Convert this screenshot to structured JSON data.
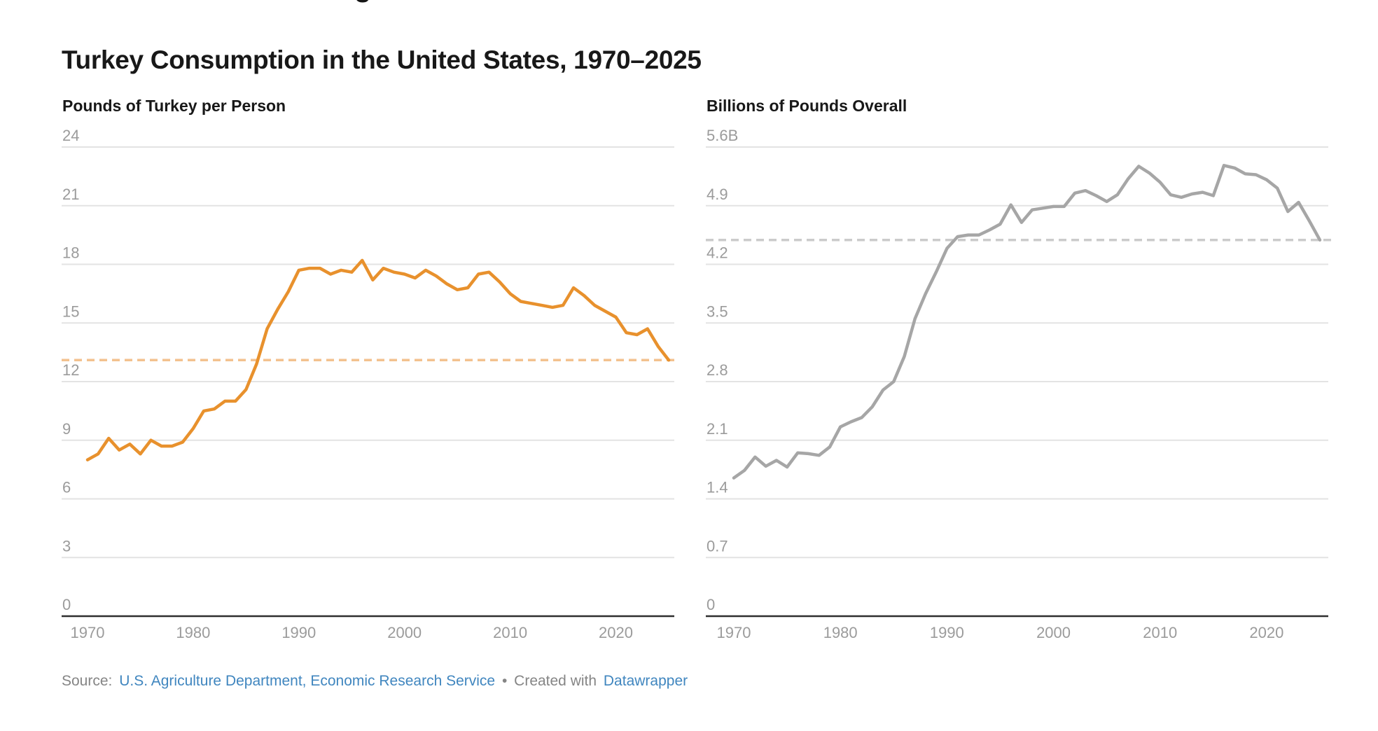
{
  "page": {
    "partial_glyph_top": "g"
  },
  "title": "Turkey Consumption in the United States, 1970–2025",
  "colors": {
    "title_text": "#181818",
    "tick_label": "#9B9B9B",
    "gridline": "#E3E3E3",
    "axis_line": "#2F2F2F",
    "left_line": "#E8912D",
    "left_reference": "#F3C28F",
    "right_line": "#A6A6A6",
    "right_reference": "#CBCBCB",
    "footer_text": "#858585",
    "link_blue": "#4086BF"
  },
  "footer": {
    "source_label": "Source:",
    "source_link": "U.S. Agriculture Department, Economic Research Service",
    "bullet": "•",
    "created_with": "Created with",
    "tool_link": "Datawrapper"
  },
  "chart_data": [
    {
      "type": "line",
      "title": "Pounds of Turkey per Person",
      "xlabel": "",
      "ylabel": "Pounds of turkey per person",
      "x_start": 1970,
      "x_end": 2025,
      "xticks": [
        1970,
        1980,
        1990,
        2000,
        2010,
        2020
      ],
      "ylim": [
        0,
        24
      ],
      "ytick_interval": 3,
      "ytick_labels_top_to_bottom": [
        "24",
        "21",
        "18",
        "15",
        "12",
        "9",
        "6",
        "3",
        "0"
      ],
      "grid": "horizontal",
      "legend": "none",
      "reference_line_value": 13.1,
      "reference_line_style": "dashed",
      "values": [
        8.0,
        8.3,
        9.1,
        8.5,
        8.8,
        8.3,
        9.0,
        8.7,
        8.7,
        8.9,
        9.6,
        10.5,
        10.6,
        11.0,
        11.0,
        11.6,
        12.9,
        14.7,
        15.7,
        16.6,
        17.7,
        17.8,
        17.8,
        17.5,
        17.7,
        17.6,
        18.2,
        17.2,
        17.8,
        17.6,
        17.5,
        17.3,
        17.7,
        17.4,
        17.0,
        16.7,
        16.8,
        17.5,
        17.6,
        17.1,
        16.5,
        16.1,
        16.0,
        15.9,
        15.8,
        15.9,
        16.8,
        16.4,
        15.9,
        15.6,
        15.3,
        14.5,
        14.4,
        14.7,
        13.8,
        13.1
      ]
    },
    {
      "type": "line",
      "title": "Billions of Pounds Overall",
      "xlabel": "",
      "ylabel": "Billions of pounds overall",
      "x_start": 1970,
      "x_end": 2025,
      "xticks": [
        1970,
        1980,
        1990,
        2000,
        2010,
        2020
      ],
      "ylim": [
        0,
        5.6
      ],
      "ytick_interval": 0.7,
      "ytick_labels_top_to_bottom": [
        "5.6B",
        "4.9",
        "4.2",
        "3.5",
        "2.8",
        "2.1",
        "1.4",
        "0.7",
        "0"
      ],
      "grid": "horizontal",
      "legend": "none",
      "reference_line_value": 4.49,
      "reference_line_style": "dashed",
      "values": [
        1.65,
        1.74,
        1.9,
        1.79,
        1.86,
        1.78,
        1.95,
        1.94,
        1.92,
        2.02,
        2.26,
        2.32,
        2.37,
        2.5,
        2.7,
        2.8,
        3.1,
        3.55,
        3.85,
        4.11,
        4.39,
        4.53,
        4.55,
        4.55,
        4.61,
        4.68,
        4.91,
        4.7,
        4.85,
        4.87,
        4.89,
        4.89,
        5.05,
        5.08,
        5.02,
        4.95,
        5.03,
        5.22,
        5.37,
        5.29,
        5.18,
        5.03,
        5.0,
        5.04,
        5.06,
        5.02,
        5.38,
        5.35,
        5.28,
        5.27,
        5.21,
        5.11,
        4.83,
        4.94,
        4.72,
        4.49
      ]
    }
  ]
}
